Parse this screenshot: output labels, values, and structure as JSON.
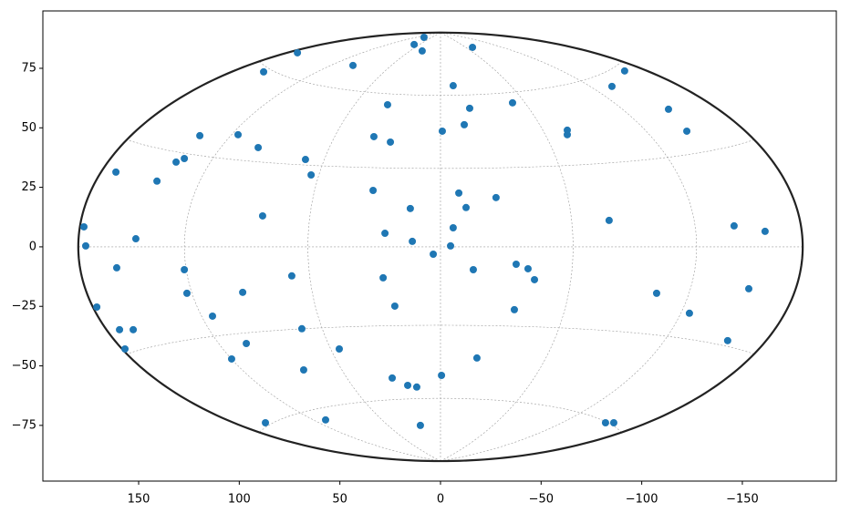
{
  "chart_data": {
    "type": "scatter",
    "color": "#1f77b4",
    "xlim": [
      197.6,
      -196.7
    ],
    "ylim": [
      -98.4,
      99.1
    ],
    "xticks": [
      150,
      100,
      50,
      0,
      {
        "value": -50,
        "label": "−50"
      },
      {
        "value": -100,
        "label": "−100"
      },
      {
        "value": -150,
        "label": "−150"
      }
    ],
    "yticks": [
      {
        "value": -75,
        "label": "−75"
      },
      {
        "value": -50,
        "label": "−50"
      },
      {
        "value": -25,
        "label": "−25"
      },
      0,
      25,
      50,
      75
    ],
    "x": [
      177.2,
      176.3,
      170.8,
      161.3,
      160.9,
      159.5,
      156.8,
      152.7,
      151.4,
      140.9,
      131.4,
      127.3,
      127.3,
      126.0,
      119.6,
      113.3,
      103.8,
      100.6,
      98.3,
      96.5,
      90.6,
      88.4,
      87.9,
      87.0,
      73.9,
      71.1,
      68.9,
      68.0,
      67.1,
      64.3,
      57.1,
      50.3,
      43.5,
      33.5,
      33.1,
      28.5,
      27.6,
      26.3,
      24.9,
      24.0,
      22.7,
      16.3,
      15.0,
      14.0,
      13.1,
      11.8,
      10.0,
      9.1,
      8.2,
      3.6,
      -0.5,
      -0.9,
      -5.0,
      -6.3,
      -6.3,
      -9.1,
      -11.8,
      -12.7,
      -14.5,
      -15.9,
      -16.3,
      -18.1,
      -27.6,
      -35.8,
      -36.7,
      -37.6,
      -43.5,
      -46.7,
      -63.0,
      -63.0,
      -82.0,
      -83.8,
      -85.2,
      -86.1,
      -91.5,
      -107.4,
      -113.3,
      -122.4,
      -123.7,
      -142.7,
      -145.9,
      -153.2,
      -161.3
    ],
    "values": [
      8.4,
      0.4,
      -25.3,
      31.4,
      -8.8,
      -34.8,
      -42.9,
      -34.8,
      3.4,
      27.6,
      35.6,
      37.1,
      -9.6,
      -19.5,
      46.7,
      -29.1,
      -47.1,
      47.1,
      -19.1,
      -40.6,
      41.7,
      13.0,
      73.5,
      -73.9,
      -12.2,
      81.5,
      -34.4,
      -51.7,
      36.7,
      30.2,
      -72.7,
      -42.9,
      76.2,
      23.7,
      46.3,
      -13.0,
      5.7,
      59.7,
      44.0,
      -55.1,
      -24.9,
      -58.2,
      16.1,
      2.3,
      85.0,
      -58.9,
      -75.0,
      82.3,
      88.0,
      -3.1,
      -54.0,
      48.6,
      0.4,
      67.7,
      8.0,
      22.6,
      51.3,
      16.5,
      58.2,
      83.8,
      -9.6,
      -46.7,
      20.7,
      60.5,
      -26.4,
      -7.3,
      -9.2,
      -13.8,
      49.0,
      47.1,
      -73.9,
      11.1,
      67.4,
      -73.9,
      73.9,
      -19.5,
      57.8,
      48.6,
      -27.9,
      -39.4,
      8.8,
      -17.6,
      6.5
    ]
  }
}
